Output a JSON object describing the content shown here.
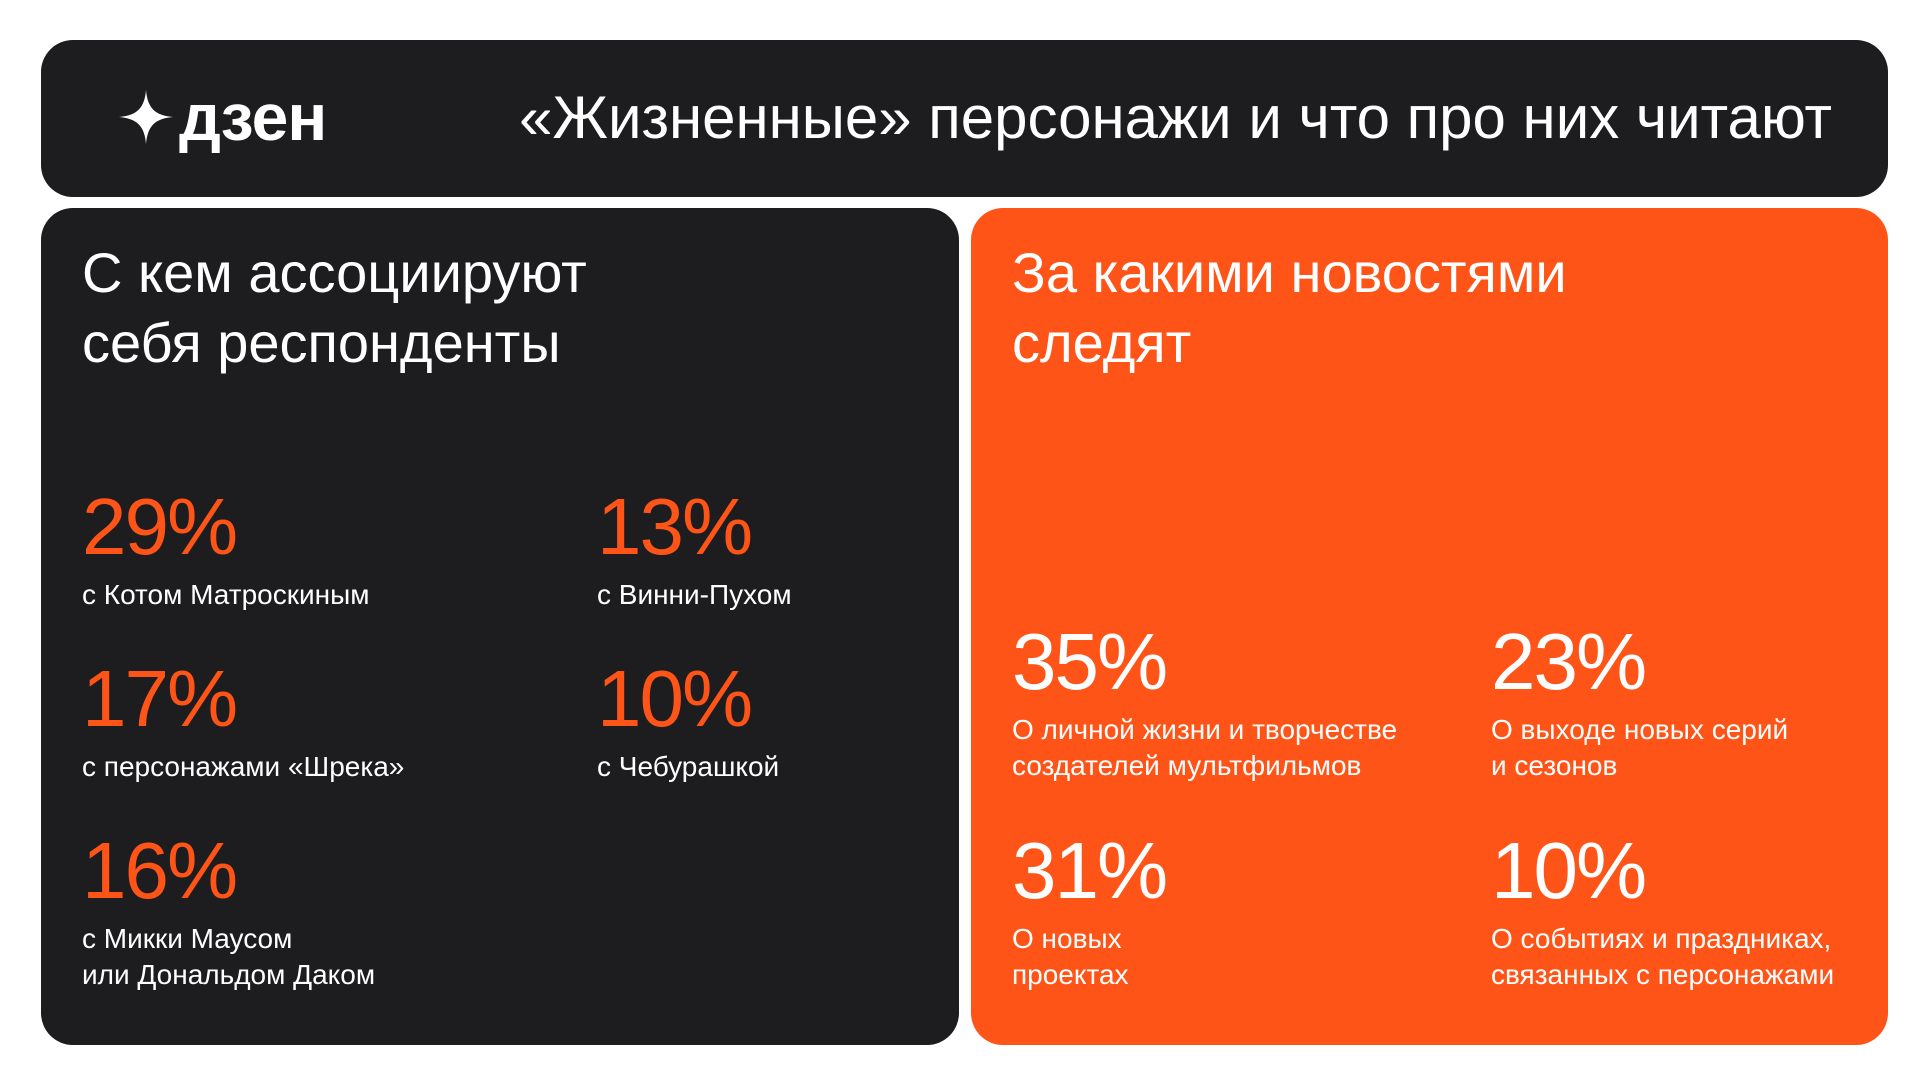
{
  "header": {
    "logo_text": "дзен",
    "title": "«Жизненные» персонажи и что про них читают"
  },
  "left": {
    "title_lines": [
      "С кем ассоциируют",
      "себя респонденты"
    ],
    "stats": [
      {
        "value": "29%",
        "label_lines": [
          "с Котом Матроскиным"
        ]
      },
      {
        "value": "13%",
        "label_lines": [
          "с Винни-Пухом"
        ]
      },
      {
        "value": "17%",
        "label_lines": [
          "с персонажами «Шрека»"
        ]
      },
      {
        "value": "10%",
        "label_lines": [
          "с Чебурашкой"
        ]
      },
      {
        "value": "16%",
        "label_lines": [
          "с Микки Маусом",
          "или Дональдом Даком"
        ]
      }
    ]
  },
  "right": {
    "title_lines": [
      "За какими новостями",
      "следят"
    ],
    "stats": [
      {
        "value": "35%",
        "label_lines": [
          "О личной жизни и творчестве",
          "создателей мультфильмов"
        ]
      },
      {
        "value": "23%",
        "label_lines": [
          "О выходе новых серий",
          "и сезонов"
        ]
      },
      {
        "value": "31%",
        "label_lines": [
          "О новых",
          "проектах"
        ]
      },
      {
        "value": "10%",
        "label_lines": [
          "О событиях и праздниках,",
          "связанных с персонажами"
        ]
      }
    ]
  },
  "colors": {
    "accent": "#ff5418",
    "dark": "#1d1d1f",
    "text_light": "#ffffff"
  }
}
